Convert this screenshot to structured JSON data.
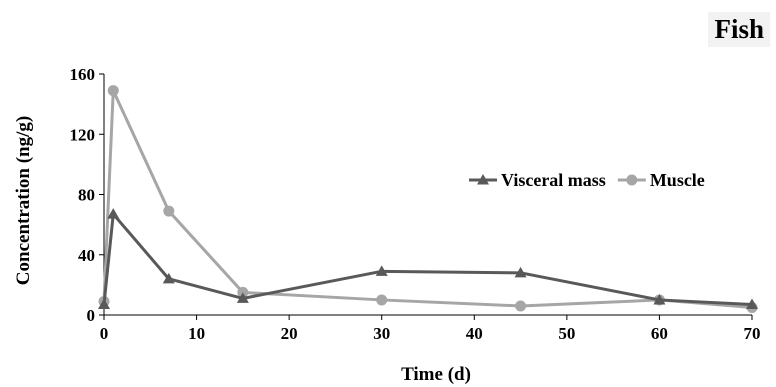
{
  "chart_data": {
    "type": "line",
    "panel_label": "Fish",
    "xlabel": "Time (d)",
    "ylabel": "Concentration (ng/g)",
    "xlim": [
      0,
      70
    ],
    "ylim": [
      0,
      160
    ],
    "x_ticks": [
      0,
      10,
      20,
      30,
      40,
      50,
      60,
      70
    ],
    "y_ticks": [
      0,
      40,
      80,
      120,
      160
    ],
    "grid": false,
    "legend_position": "right",
    "series": [
      {
        "name": "Visceral mass",
        "color": "#595959",
        "marker": "triangle",
        "x": [
          0,
          1,
          7,
          15,
          30,
          45,
          60,
          70
        ],
        "values": [
          7,
          67,
          24,
          11,
          29,
          28,
          10,
          7
        ]
      },
      {
        "name": "Muscle",
        "color": "#a6a6a6",
        "marker": "circle",
        "x": [
          0,
          1,
          7,
          15,
          30,
          45,
          60,
          70
        ],
        "values": [
          9,
          149,
          69,
          15,
          10,
          6,
          10,
          5
        ]
      }
    ]
  }
}
